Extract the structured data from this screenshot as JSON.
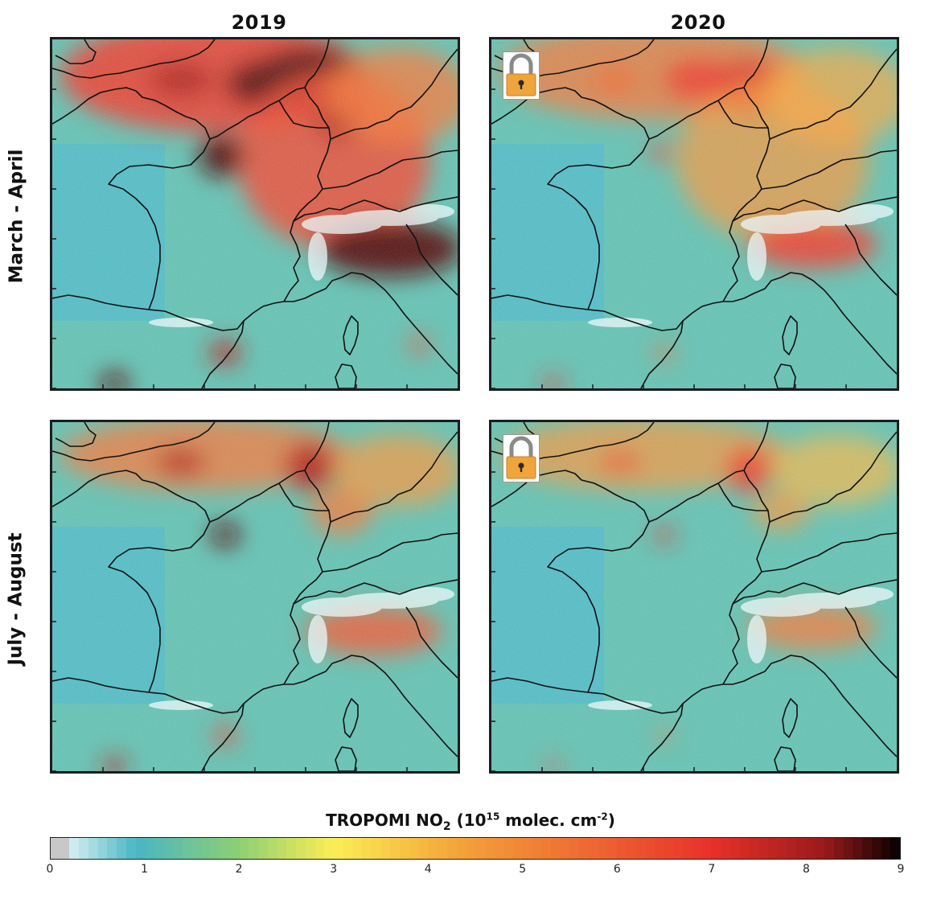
{
  "columns": {
    "left": "2019",
    "right": "2020"
  },
  "rows": {
    "top": "March - April",
    "bottom": "July - August"
  },
  "panels": [
    {
      "id": "mar-apr-2019",
      "year": "2019",
      "period": "March - April",
      "lockdown_icon": false
    },
    {
      "id": "mar-apr-2020",
      "year": "2020",
      "period": "March - April",
      "lockdown_icon": true,
      "icon": "padlock-icon"
    },
    {
      "id": "jul-aug-2019",
      "year": "2019",
      "period": "July - August",
      "lockdown_icon": false
    },
    {
      "id": "jul-aug-2020",
      "year": "2020",
      "period": "July - August",
      "lockdown_icon": true,
      "icon": "padlock-icon"
    }
  ],
  "colorbar": {
    "label_main": "TROPOMI NO",
    "label_sub": "2",
    "label_open": " (10",
    "label_exp": "15",
    "label_units": " molec. cm",
    "label_units_exp": "-2",
    "label_close": ")",
    "ticks": [
      "0",
      "1",
      "2",
      "3",
      "4",
      "5",
      "6",
      "7",
      "8",
      "9"
    ],
    "min": 0,
    "max": 9,
    "colors": {
      "no_data": "#c8c8c8",
      "low": "#ffffff",
      "cyan": "#49b6c4",
      "green": "#8ecf74",
      "yellow": "#fbee55",
      "orange": "#f4a43a",
      "red": "#e8312a",
      "max": "#050000"
    }
  }
}
